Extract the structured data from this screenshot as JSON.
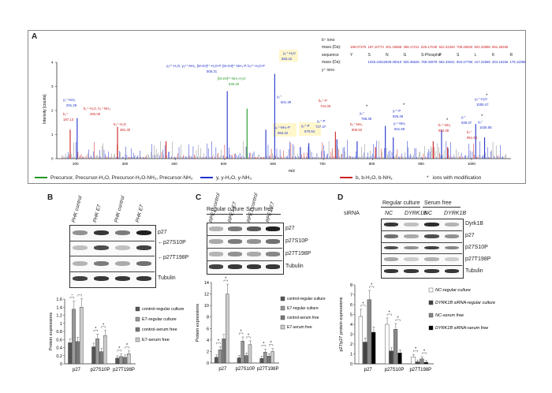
{
  "panelA": {
    "letter": "A",
    "yaxis_label": "Intensity [counts]",
    "xaxis_label": "m/z",
    "xticks": [
      "200",
      "300",
      "400",
      "500",
      "600",
      "700",
      "800",
      "900",
      "1000"
    ],
    "yticks": [
      "0",
      "1",
      "2",
      "3",
      "4"
    ],
    "annotations": [
      {
        "text": "y₂⁺-NH₃",
        "color": "#2233cc"
      },
      {
        "text": "201.29",
        "color": "#2233cc"
      },
      {
        "text": "b₁⁺",
        "color": "#cc2222"
      },
      {
        "text": "187.13",
        "color": "#cc2222"
      },
      {
        "text": "b₂⁺-H₂O, b₂⁺-NH₃",
        "color": "#cc2222"
      },
      {
        "text": "283.09",
        "color": "#cc2222"
      },
      {
        "text": "b₃⁺-H₂O",
        "color": "#cc2222"
      },
      {
        "text": "381.30",
        "color": "#cc2222"
      },
      {
        "text": "y₆²⁺-H₂O, y₆²⁺-NH₃, [M-2H]²⁺-H₂O-P, [M-2H]²⁺-NH₃-P, b₅²⁺-H₂O-P",
        "color": "#2233cc"
      },
      {
        "text": "505.31",
        "color": "#2233cc"
      },
      {
        "text": "[M-2H]²⁺-NH₃-H₂O",
        "color": "#229922"
      },
      {
        "text": "545.40",
        "color": "#229922"
      },
      {
        "text": "y₅⁺",
        "color": "#2233cc"
      },
      {
        "text": "601.39",
        "color": "#2233cc"
      },
      {
        "text": "y₅⁺-H₂O",
        "color": "#2233cc"
      },
      {
        "text": "583.42",
        "color": "#2233cc"
      },
      {
        "text": "y₆⁺-NH₃-P",
        "color": "#2233cc"
      },
      {
        "text": "653.42",
        "color": "#2233cc"
      },
      {
        "text": "y₆⁺-P",
        "color": "#2233cc"
      },
      {
        "text": "670.54",
        "color": "#2233cc"
      },
      {
        "text": "y₆⁺-P",
        "color": "#2233cc"
      },
      {
        "text": "727.37",
        "color": "#2233cc"
      },
      {
        "text": "b₆⁺-P",
        "color": "#cc2222"
      },
      {
        "text": "724.36",
        "color": "#cc2222"
      },
      {
        "text": "y₆⁺",
        "color": "#2233cc"
      },
      {
        "text": "768.39",
        "color": "#2233cc"
      },
      {
        "text": "b₆⁺-NH₃",
        "color": "#cc2222"
      },
      {
        "text": "805.52",
        "color": "#cc2222"
      },
      {
        "text": "y₇⁺-P",
        "color": "#2233cc"
      },
      {
        "text": "825.49",
        "color": "#2233cc"
      },
      {
        "text": "y₇⁺-NH₃",
        "color": "#2233cc"
      },
      {
        "text": "841.58",
        "color": "#2233cc"
      },
      {
        "text": "b₇⁺-NH₃",
        "color": "#cc2222"
      },
      {
        "text": "922.38",
        "color": "#cc2222"
      },
      {
        "text": "y₇⁺",
        "color": "#2233cc"
      },
      {
        "text": "939.37",
        "color": "#2233cc"
      },
      {
        "text": "b₇⁺",
        "color": "#cc2222"
      },
      {
        "text": "951.64",
        "color": "#cc2222"
      },
      {
        "text": "y₈⁺-H₂O",
        "color": "#2233cc"
      },
      {
        "text": "1008.47",
        "color": "#2233cc"
      },
      {
        "text": "y₈⁺",
        "color": "#2233cc"
      },
      {
        "text": "1026.55",
        "color": "#2233cc"
      }
    ],
    "ion_table": {
      "b_label": "b⁺ ions:",
      "b_mass_label": "mass (Da):",
      "b_masses": [
        "189.07375",
        "187.10773",
        "301.15868",
        "398.17211",
        "525.17049",
        "622.22326",
        "708.25520",
        "822.33858",
        "951.38186"
      ],
      "seq_label": "sequence",
      "sequence": [
        "Y",
        "S",
        "N",
        "G",
        "S-Phospho",
        "P",
        "S",
        "L",
        "K",
        "R"
      ],
      "y_mass_label": "mass (Da):",
      "y_masses": [
        "1026.42522",
        "938.39310",
        "825.35526",
        "768.32878",
        "684.33041",
        "504.27766",
        "417.24565",
        "304.16156",
        "175.11896"
      ],
      "y_label": "y⁺ ions:"
    },
    "legend": [
      {
        "text": "Precursor, Precursor-H₂O, Precursor-H₂O-NH₃, Precursor-NH₃",
        "color": "#229922"
      },
      {
        "text": "y, y-H₂O, y-NH₃",
        "color": "#2233cc"
      },
      {
        "text": "b, b-H₂O, b-NH₃",
        "color": "#cc2222"
      },
      {
        "text": "ions with modification",
        "color": "#222222",
        "marker": "*"
      }
    ]
  },
  "panelB": {
    "letter": "B",
    "lanes": [
      "PHK control",
      "PHK E7",
      "PHK control",
      "PHK E7"
    ],
    "group1": "Regular culture",
    "group2": "Serum free",
    "blot_rows": [
      "p27",
      "p27S10P",
      "p27T198P",
      "Tubulin"
    ],
    "arrows": [
      "←p27S10P",
      "←p27T198P"
    ],
    "chart_data": {
      "type": "bar",
      "categories": [
        "p27",
        "p27S10P",
        "p27T198P"
      ],
      "ylabel": "Protein expressions",
      "ylim": [
        0,
        1.6
      ],
      "yticks": [
        "0",
        "0.2",
        "0.4",
        "0.6",
        "0.8",
        "1",
        "1.2",
        "1.4",
        "1.6"
      ],
      "series": [
        {
          "name": "control-regular culture",
          "values": [
            0.52,
            0.42,
            0.14
          ],
          "color": "#555555"
        },
        {
          "name": "E7-regular culture",
          "values": [
            1.35,
            0.62,
            0.18
          ],
          "color": "#999999"
        },
        {
          "name": "control-serum free",
          "values": [
            0.55,
            0.3,
            0.16
          ],
          "color": "#777777"
        },
        {
          "name": "E7-serum free",
          "values": [
            1.4,
            0.7,
            0.25
          ],
          "color": "#cccccc"
        }
      ],
      "sig_marks": [
        "*",
        "*",
        "*",
        "*",
        "*",
        "*"
      ]
    }
  },
  "panelC": {
    "letter": "C",
    "lanes": [
      "RPE1 control",
      "RPE1 E7",
      "RPE1 control",
      "RPE1 E7"
    ],
    "group1": "Regular culture",
    "group2": "Serum free",
    "blot_rows": [
      "p27",
      "p27S10P",
      "p27T198P",
      "Tubulin"
    ],
    "chart_data": {
      "type": "bar",
      "categories": [
        "p27",
        "p27S10P",
        "p27T198P"
      ],
      "ylabel": "Protein expressions",
      "ylim": [
        0,
        14
      ],
      "yticks": [
        "0",
        "2",
        "4",
        "6",
        "8",
        "10",
        "12",
        "14"
      ],
      "series": [
        {
          "name": "control-regular culture",
          "values": [
            1.0,
            0.9,
            0.8
          ],
          "color": "#555555"
        },
        {
          "name": "E7-regular culture",
          "values": [
            2.3,
            3.8,
            1.9
          ],
          "color": "#999999"
        },
        {
          "name": "control-serum free",
          "values": [
            4.2,
            1.3,
            1.2
          ],
          "color": "#777777"
        },
        {
          "name": "E7-serum free",
          "values": [
            12.0,
            3.2,
            2.0
          ],
          "color": "#cccccc"
        }
      ],
      "sig_marks": [
        "*",
        "*",
        "*",
        "*",
        "*",
        "*"
      ]
    }
  },
  "panelD": {
    "letter": "D",
    "group1": "Regular culture",
    "group2": "Serum free",
    "sirna_label": "siRNA",
    "lanes": [
      "NC",
      "DYRK1B",
      "NC",
      "DYRK1B"
    ],
    "blot_rows": [
      "Dyrk1B",
      "p27",
      "p27S10P",
      "p27T198P",
      "Tubulin"
    ],
    "chart_data": {
      "type": "bar",
      "categories": [
        "p27",
        "p27S10P",
        "p27T198P"
      ],
      "ylabel": "p27/p27 protein expressions",
      "ylim": [
        0,
        8
      ],
      "yticks": [
        "0",
        "1",
        "2",
        "3",
        "4",
        "5",
        "6",
        "7",
        "8"
      ],
      "series": [
        {
          "name": "NC-regular culture",
          "values": [
            4.8,
            4.0,
            0.7
          ],
          "color": "#ffffff"
        },
        {
          "name": "DYRK1B siRNA-regular culture",
          "values": [
            2.2,
            1.3,
            0.2
          ],
          "color": "#444444"
        },
        {
          "name": "NC-serum free",
          "values": [
            6.5,
            3.5,
            0.5
          ],
          "color": "#888888"
        },
        {
          "name": "DYRK1B siRNA-serum free",
          "values": [
            3.2,
            1.1,
            0.15
          ],
          "color": "#000000"
        }
      ],
      "sig_marks": [
        "*",
        "*",
        "*",
        "*",
        "*",
        "*"
      ]
    }
  }
}
